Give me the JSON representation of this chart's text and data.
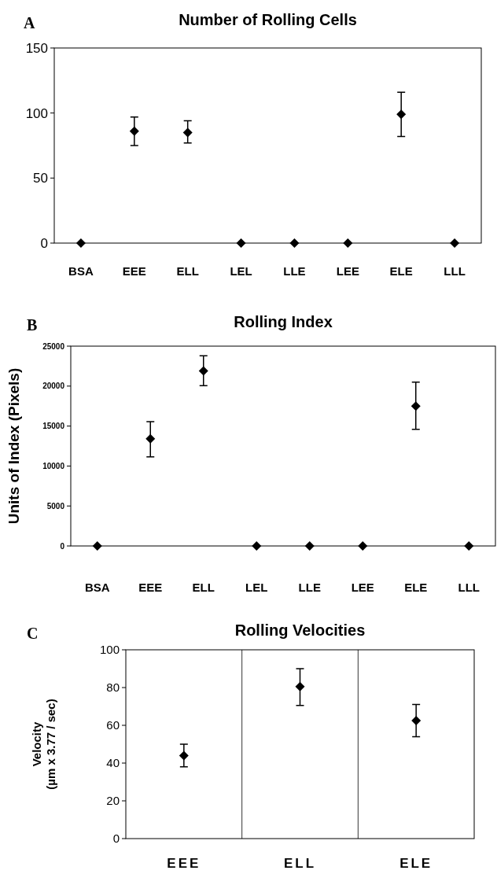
{
  "chart_data": [
    {
      "type": "scatter",
      "title": "Number of Rolling Cells",
      "annotations": [
        "A"
      ],
      "categories": [
        "BSA",
        "EEE",
        "ELL",
        "LEL",
        "LLE",
        "LEE",
        "ELE",
        "LLL"
      ],
      "series": [
        {
          "color": "#000000",
          "values": [
            0,
            86,
            85,
            0,
            0,
            0,
            99,
            0
          ],
          "errors": [
            null,
            [
              75,
              97
            ],
            [
              77,
              94
            ],
            null,
            null,
            null,
            [
              82,
              116
            ],
            null
          ]
        }
      ],
      "ylim": [
        0,
        150
      ],
      "yticks": [
        0,
        50,
        100,
        150
      ],
      "marker": "diamond",
      "grid": false
    },
    {
      "type": "scatter",
      "title": "Rolling Index",
      "ylabel": "Units of Index (Pixels)",
      "annotations": [
        "B"
      ],
      "categories": [
        "BSA",
        "EEE",
        "ELL",
        "LEL",
        "LLE",
        "LEE",
        "ELE",
        "LLL"
      ],
      "series": [
        {
          "color": "#000000",
          "values": [
            0,
            13400,
            21900,
            0,
            0,
            0,
            17500,
            0
          ],
          "errors": [
            null,
            [
              11150,
              15550
            ],
            [
              20050,
              23800
            ],
            null,
            null,
            null,
            [
              14600,
              20500
            ],
            null
          ]
        }
      ],
      "ylim": [
        0,
        25000
      ],
      "yticks": [
        0,
        5000,
        10000,
        15000,
        20000,
        25000
      ],
      "marker": "diamond",
      "grid": false
    },
    {
      "type": "scatter",
      "title": "Rolling Velocities",
      "ylabel": "Velocity\n(µm x 3.77 / sec)",
      "annotations": [
        "C"
      ],
      "categories": [
        "EEE",
        "ELL",
        "ELE"
      ],
      "series": [
        {
          "color": "#000000",
          "values": [
            44,
            80.5,
            62.5
          ],
          "errors": [
            [
              38,
              50
            ],
            [
              70.5,
              90
            ],
            [
              54,
              71
            ]
          ]
        }
      ],
      "ylim": [
        0,
        100
      ],
      "yticks": [
        0,
        20,
        40,
        60,
        80,
        100
      ],
      "marker": "diamond",
      "grid": "x"
    }
  ]
}
